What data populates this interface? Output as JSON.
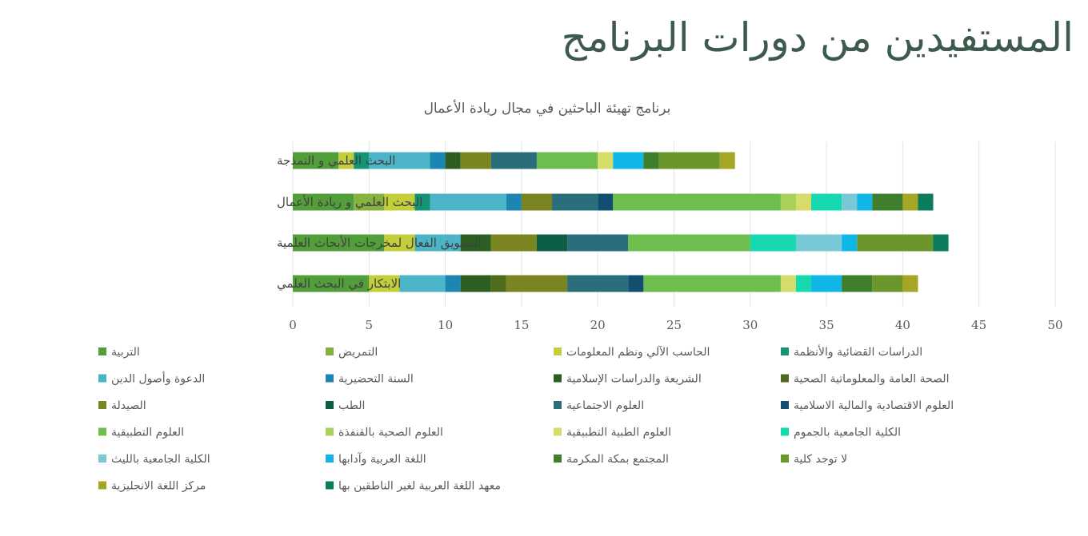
{
  "page": {
    "title": "المستفيدين من دورات البرنامج"
  },
  "chart_data": {
    "type": "bar",
    "orientation": "horizontal",
    "stacked": true,
    "title": "برنامج تهيئة الباحثين في مجال ريادة الأعمال",
    "categories": [
      "البحث العلمي و النمذجة",
      "البحث العلمي و ريادة الأعمال",
      "التسويق الفعال لمخرجات الأبحاث العلمية",
      "الابتكار في البحث العلمي"
    ],
    "xlim": [
      0,
      50
    ],
    "xticks": [
      0,
      5,
      10,
      15,
      20,
      25,
      30,
      35,
      40,
      45,
      50
    ],
    "grid": true,
    "legend_position": "bottom",
    "series": [
      {
        "name": "التربية",
        "color": "#519e3a",
        "values": [
          3,
          4,
          6,
          5
        ]
      },
      {
        "name": "التمريض",
        "color": "#86b33d",
        "values": [
          0,
          2,
          0,
          0
        ]
      },
      {
        "name": "الحاسب الآلي ونظم المعلومات",
        "color": "#c4ce3a",
        "values": [
          1,
          2,
          2,
          2
        ]
      },
      {
        "name": "الدراسات القضائية والأنظمة",
        "color": "#149475",
        "values": [
          1,
          1,
          0,
          0
        ]
      },
      {
        "name": "الدعوة وأصول الدين",
        "color": "#4cb4c7",
        "values": [
          4,
          5,
          3,
          3
        ]
      },
      {
        "name": "السنة التحضيرية",
        "color": "#1a86b1",
        "values": [
          1,
          1,
          0,
          1
        ]
      },
      {
        "name": "الشريعة والدراسات الإسلامية",
        "color": "#2c5e22",
        "values": [
          1,
          0,
          2,
          2
        ]
      },
      {
        "name": "الصحة العامة والمعلوماتية الصحية",
        "color": "#4e6b1e",
        "values": [
          0,
          0,
          0,
          1
        ]
      },
      {
        "name": "الصيدلة",
        "color": "#7a8420",
        "values": [
          2,
          2,
          3,
          4
        ]
      },
      {
        "name": "الطب",
        "color": "#0c5e46",
        "values": [
          0,
          0,
          2,
          0
        ]
      },
      {
        "name": "العلوم الاجتماعية",
        "color": "#2a6e7c",
        "values": [
          3,
          3,
          4,
          4
        ]
      },
      {
        "name": "العلوم الاقتصادية والمالية الاسلامية",
        "color": "#124e70",
        "values": [
          0,
          1,
          0,
          1
        ]
      },
      {
        "name": "العلوم التطبيقية",
        "color": "#6dbe4f",
        "values": [
          4,
          11,
          8,
          9
        ]
      },
      {
        "name": "العلوم الصحية بالقنفذة",
        "color": "#a8d15a",
        "values": [
          0,
          1,
          0,
          0
        ]
      },
      {
        "name": "العلوم الطبية التطبيقية",
        "color": "#d6dc6a",
        "values": [
          1,
          1,
          0,
          1
        ]
      },
      {
        "name": "الكلية الجامعية بالجموم",
        "color": "#16d9b0",
        "values": [
          0,
          2,
          3,
          1
        ]
      },
      {
        "name": "الكلية الجامعية بالليث",
        "color": "#78c8d6",
        "values": [
          0,
          1,
          3,
          0
        ]
      },
      {
        "name": "اللغة العربية وآدابها",
        "color": "#10b6e8",
        "values": [
          2,
          1,
          1,
          2
        ]
      },
      {
        "name": "المجتمع بمكة المكرمة",
        "color": "#3f7e2c",
        "values": [
          1,
          2,
          0,
          2
        ]
      },
      {
        "name": "لا توجد كلية",
        "color": "#6a962c",
        "values": [
          4,
          0,
          5,
          2
        ]
      },
      {
        "name": "مركز اللغة الانجليزية",
        "color": "#a5a526",
        "values": [
          1,
          1,
          0,
          1
        ]
      },
      {
        "name": "معهد اللغة العربية لغير الناطقين بها",
        "color": "#0b7c5c",
        "values": [
          0,
          1,
          1,
          0
        ]
      }
    ]
  }
}
